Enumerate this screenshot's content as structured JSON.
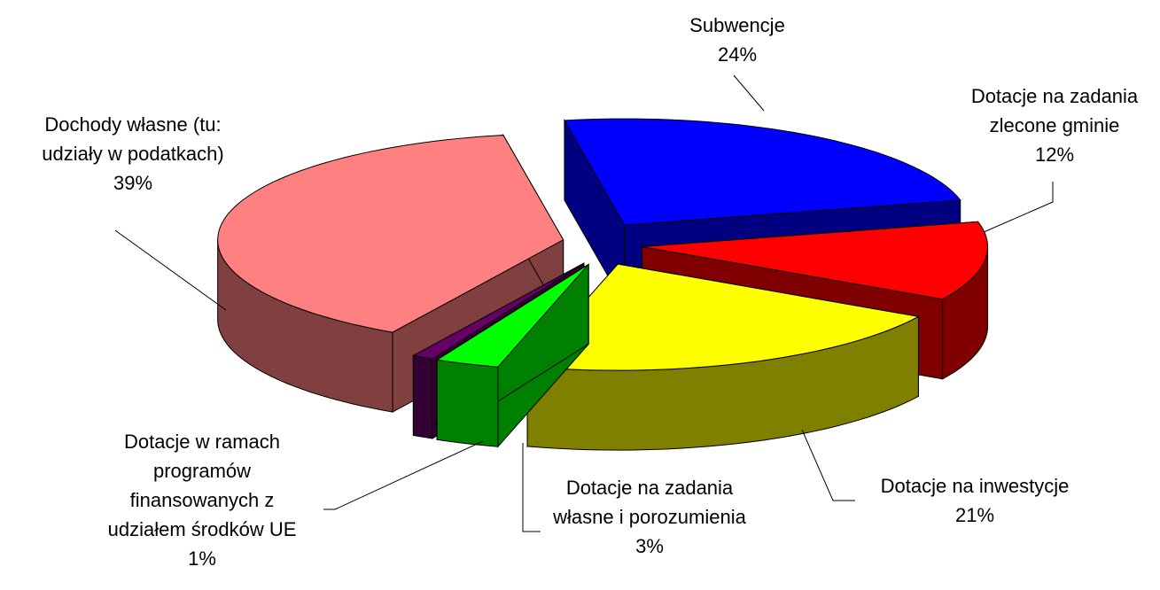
{
  "chart_data": {
    "type": "pie",
    "categories": [
      "Subwencje",
      "Dotacje na zadania zlecone gminie",
      "Dotacje na inwestycje",
      "Dotacje na zadania własne i porozumienia",
      "Dotacje w ramach programów finansowanych z udziałem środków UE",
      "Dochody własne (tu: udziały w podatkach)"
    ],
    "values": [
      24,
      12,
      21,
      3,
      1,
      39
    ],
    "value_labels": [
      "24%",
      "12%",
      "21%",
      "3%",
      "1%",
      "39%"
    ],
    "colors": [
      "#0000ff",
      "#ff0000",
      "#ffff00",
      "#00ff00",
      "#660066",
      "#ff8080"
    ]
  }
}
